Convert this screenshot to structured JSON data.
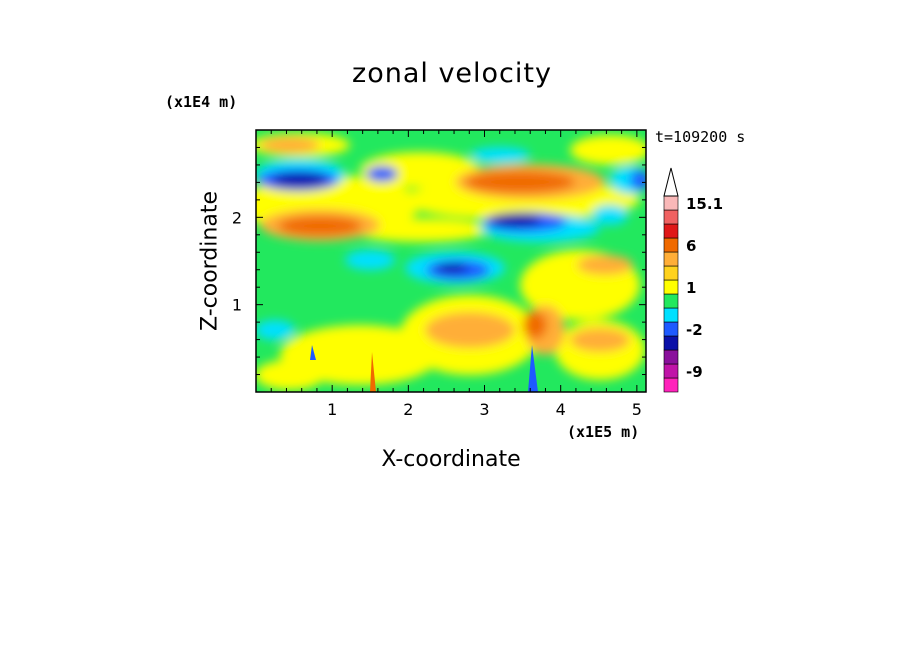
{
  "chart_data": {
    "type": "heatmap",
    "title": "zonal velocity",
    "xlabel": "X-coordinate",
    "ylabel": "Z-coordinate",
    "x_unit_label": "(x1E5 m)",
    "y_unit_label": "(x1E4 m)",
    "time_label": "t=109200 s",
    "x_ticks": [
      "1",
      "2",
      "3",
      "4",
      "5"
    ],
    "y_ticks": [
      "1",
      "2"
    ],
    "xlim": [
      0,
      5.12
    ],
    "ylim": [
      0,
      3.0
    ],
    "colorbar": {
      "tick_labels": [
        "15.1",
        "6",
        "1",
        "-2",
        "-9"
      ],
      "tick_values": [
        15.1,
        6,
        1,
        -2,
        -9
      ],
      "levels": [
        {
          "value": -12,
          "color": "#ff22bb"
        },
        {
          "value": -9,
          "color": "#c014a8"
        },
        {
          "value": -6,
          "color": "#8a109c"
        },
        {
          "value": -4,
          "color": "#0a10a8"
        },
        {
          "value": -2,
          "color": "#1e5aff"
        },
        {
          "value": -1,
          "color": "#00e0ff"
        },
        {
          "value": 0,
          "color": "#22e85e"
        },
        {
          "value": 1,
          "color": "#ffff00"
        },
        {
          "value": 2,
          "color": "#ffd21e"
        },
        {
          "value": 3,
          "color": "#ffae38"
        },
        {
          "value": 6,
          "color": "#f06a00"
        },
        {
          "value": 9,
          "color": "#e01818"
        },
        {
          "value": 12,
          "color": "#f06262"
        },
        {
          "value": 15.1,
          "color": "#f9b8b8"
        }
      ]
    },
    "features": [
      {
        "x": 0.8,
        "z": 2.45,
        "value": -4
      },
      {
        "x": 1.4,
        "z": 2.45,
        "value": -4
      },
      {
        "x": 0.8,
        "z": 1.9,
        "value": 6
      },
      {
        "x": 3.3,
        "z": 2.05,
        "value": -4
      },
      {
        "x": 3.5,
        "z": 2.45,
        "value": 6
      },
      {
        "x": 4.6,
        "z": 2.45,
        "value": -2
      },
      {
        "x": 2.6,
        "z": 1.4,
        "value": -4
      },
      {
        "x": 3.0,
        "z": 0.6,
        "value": 3
      },
      {
        "x": 3.6,
        "z": 0.7,
        "value": 6
      }
    ]
  }
}
